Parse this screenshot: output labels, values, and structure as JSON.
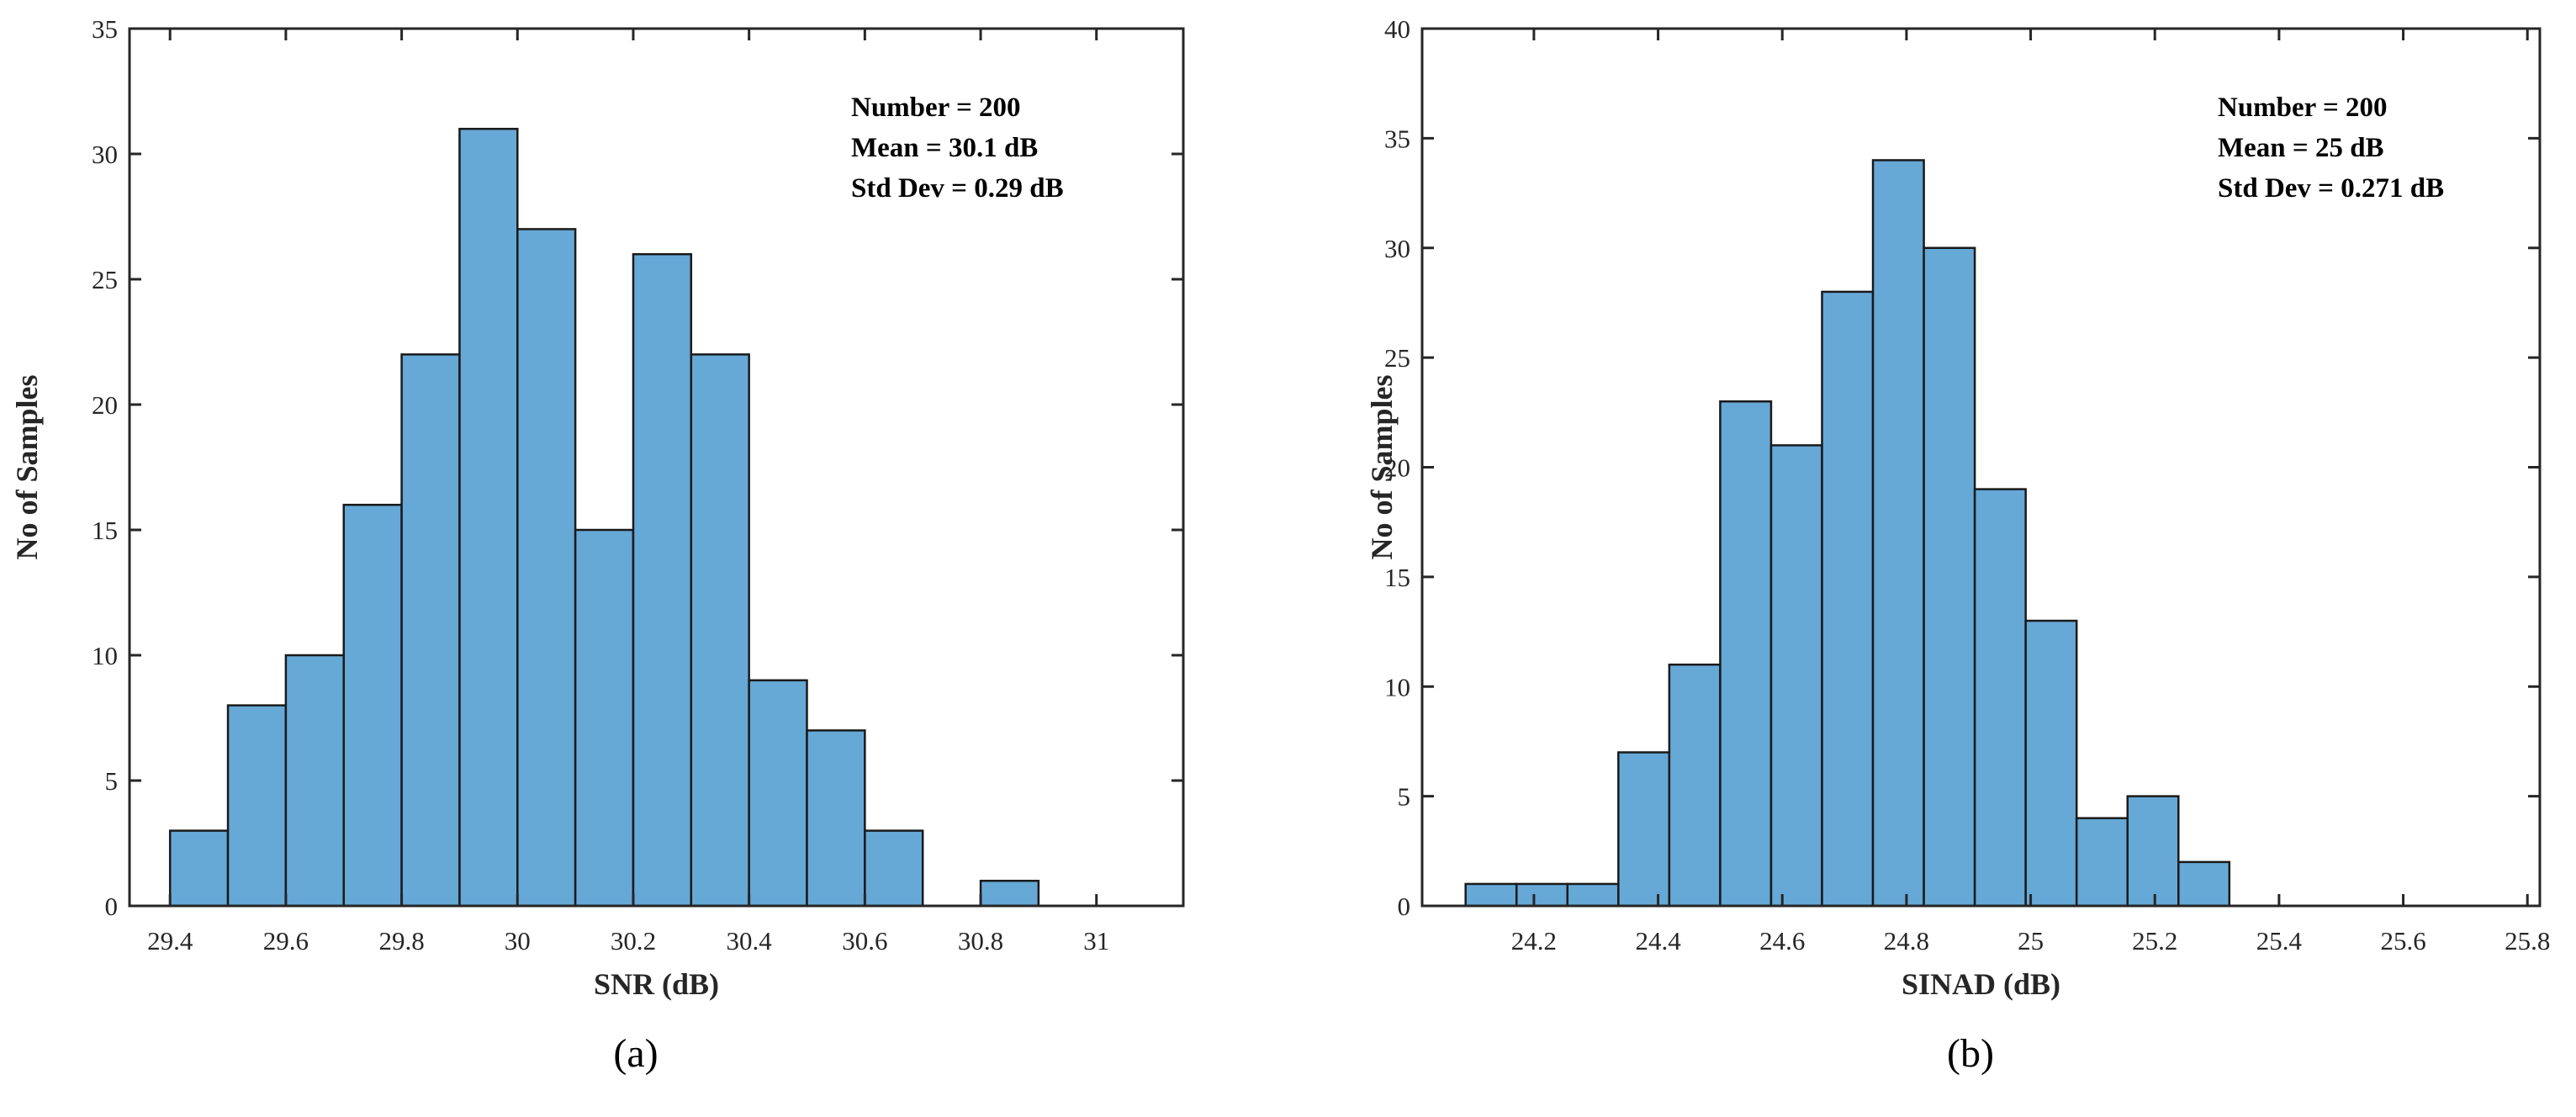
{
  "bar_color": "#66a8d6",
  "chart_data": [
    {
      "type": "bar",
      "panel": "(a)",
      "xlabel": "SNR  (dB)",
      "ylabel": "No of Samples",
      "xlim": [
        29.33,
        31.15
      ],
      "ylim": [
        0,
        35
      ],
      "xticks": [
        29.4,
        29.6,
        29.8,
        30,
        30.2,
        30.4,
        30.6,
        30.8,
        31
      ],
      "xtick_labels": [
        "29.4",
        "29.6",
        "29.8",
        "30",
        "30.2",
        "30.4",
        "30.6",
        "30.8",
        "31"
      ],
      "yticks": [
        0,
        5,
        10,
        15,
        20,
        25,
        30,
        35
      ],
      "bin_start": 29.4,
      "bin_width": 0.1,
      "values": [
        3,
        8,
        10,
        16,
        22,
        31,
        27,
        15,
        26,
        22,
        9,
        7,
        3,
        0,
        1
      ],
      "annotation": [
        "Number = 200",
        "Mean = 30.1 dB",
        "Std Dev = 0.29 dB"
      ]
    },
    {
      "type": "bar",
      "panel": "(b)",
      "xlabel": "SINAD (dB)",
      "ylabel": "No of Samples",
      "xlim": [
        24.02,
        25.82
      ],
      "ylim": [
        0,
        40
      ],
      "xticks": [
        24.2,
        24.4,
        24.6,
        24.8,
        25,
        25.2,
        25.4,
        25.6,
        25.8
      ],
      "xtick_labels": [
        "24.2",
        "24.4",
        "24.6",
        "24.8",
        "25",
        "25.2",
        "25.4",
        "25.6",
        "25.8"
      ],
      "yticks": [
        0,
        5,
        10,
        15,
        20,
        25,
        30,
        35,
        40
      ],
      "bin_start": 24.09,
      "bin_width": 0.082,
      "values": [
        1,
        1,
        1,
        7,
        11,
        23,
        21,
        28,
        34,
        30,
        19,
        13,
        4,
        5,
        2
      ],
      "annotation": [
        "Number = 200",
        "Mean = 25 dB",
        "Std Dev = 0.271 dB"
      ]
    }
  ]
}
